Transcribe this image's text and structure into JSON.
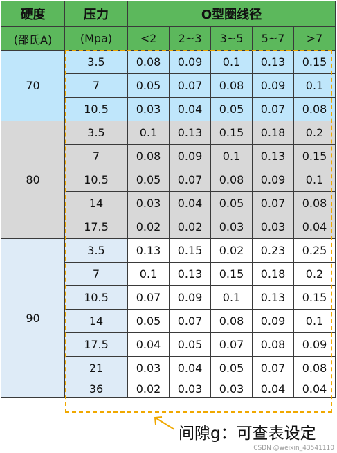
{
  "header": {
    "hardness_label": "硬度",
    "hardness_unit": "(邵氏A)",
    "pressure_label": "压力",
    "pressure_unit": "(Mpa)",
    "diameter_label": "O型圈线径",
    "diameter_ranges": [
      "<2",
      "2~3",
      "3~5",
      "5~7",
      ">7"
    ]
  },
  "groups": [
    {
      "hardness": "70",
      "rows": [
        {
          "pressure": "3.5",
          "values": [
            "0.08",
            "0.09",
            "0.1",
            "0.13",
            "0.15"
          ]
        },
        {
          "pressure": "7",
          "values": [
            "0.05",
            "0.07",
            "0.08",
            "0.09",
            "0.1"
          ]
        },
        {
          "pressure": "10.5",
          "values": [
            "0.03",
            "0.04",
            "0.05",
            "0.07",
            "0.08"
          ]
        }
      ]
    },
    {
      "hardness": "80",
      "rows": [
        {
          "pressure": "3.5",
          "values": [
            "0.1",
            "0.13",
            "0.15",
            "0.18",
            "0.2"
          ]
        },
        {
          "pressure": "7",
          "values": [
            "0.08",
            "0.09",
            "0.1",
            "0.13",
            "0.15"
          ]
        },
        {
          "pressure": "10.5",
          "values": [
            "0.05",
            "0.07",
            "0.08",
            "0.09",
            "0.1"
          ]
        },
        {
          "pressure": "14",
          "values": [
            "0.03",
            "0.04",
            "0.05",
            "0.07",
            "0.08"
          ]
        },
        {
          "pressure": "17.5",
          "values": [
            "0.02",
            "0.02",
            "0.03",
            "0.03",
            "0.04"
          ]
        }
      ]
    },
    {
      "hardness": "90",
      "rows": [
        {
          "pressure": "3.5",
          "values": [
            "0.13",
            "0.15",
            "0.02",
            "0.23",
            "0.25"
          ]
        },
        {
          "pressure": "7",
          "values": [
            "0.1",
            "0.13",
            "0.15",
            "0.18",
            "0.2"
          ]
        },
        {
          "pressure": "10.5",
          "values": [
            "0.07",
            "0.09",
            "0.1",
            "0.13",
            "0.15"
          ]
        },
        {
          "pressure": "14",
          "values": [
            "0.05",
            "0.07",
            "0.08",
            "0.09",
            "0.1"
          ]
        },
        {
          "pressure": "17.5",
          "values": [
            "0.04",
            "0.05",
            "0.07",
            "0.08",
            "0.09"
          ]
        },
        {
          "pressure": "21",
          "values": [
            "0.03",
            "0.04",
            "0.05",
            "0.07",
            "0.08"
          ]
        },
        {
          "pressure": "36",
          "values": [
            "0.02",
            "0.03",
            "0.03",
            "0.04",
            "0.04"
          ]
        }
      ]
    }
  ],
  "annotation": {
    "caption": "间隙g：可查表设定",
    "box_color": "#f0a800",
    "arrow_color": "#f0a800"
  },
  "colors": {
    "header_green": "#5cb85c",
    "group70_blue": "#bfe6fb",
    "group80_gray": "#d8d8d8",
    "group90_lightblue": "#deebf7"
  },
  "watermark": "CSDN @weixin_43541110"
}
